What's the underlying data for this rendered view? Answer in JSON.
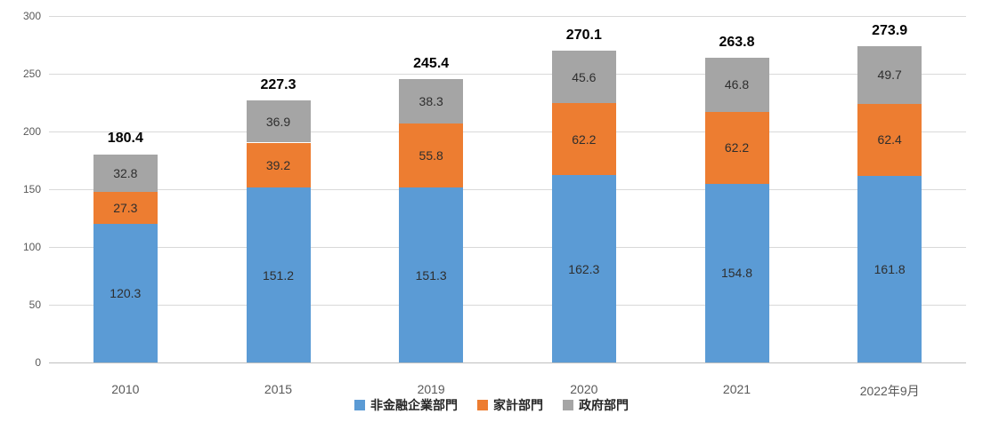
{
  "chart_data": {
    "type": "bar",
    "stacked": true,
    "title": "",
    "xlabel": "",
    "ylabel": "",
    "categories": [
      "2010",
      "2015",
      "2019",
      "2020",
      "2021",
      "2022年9月"
    ],
    "series": [
      {
        "name": "非金融企業部門",
        "color": "#5b9bd5",
        "values": [
          120.3,
          151.2,
          151.3,
          162.3,
          154.8,
          161.8
        ]
      },
      {
        "name": "家計部門",
        "color": "#ed7d31",
        "values": [
          27.3,
          39.2,
          55.8,
          62.2,
          62.2,
          62.4
        ]
      },
      {
        "name": "政府部門",
        "color": "#a5a5a5",
        "values": [
          32.8,
          36.9,
          38.3,
          45.6,
          46.8,
          49.7
        ]
      }
    ],
    "totals": [
      180.4,
      227.3,
      245.4,
      270.1,
      263.8,
      273.9
    ],
    "ylim": [
      0,
      300
    ],
    "ytick_step": 50,
    "ytick_labels": [
      "0",
      "50",
      "100",
      "150",
      "200",
      "250",
      "300"
    ],
    "grid": true,
    "legend_position": "bottom"
  },
  "style": {
    "gridline_color": "#d9d9d9",
    "axis_label_color": "#595959",
    "total_label_color": "#000000",
    "segment_label_color": "#2e2e2e"
  }
}
